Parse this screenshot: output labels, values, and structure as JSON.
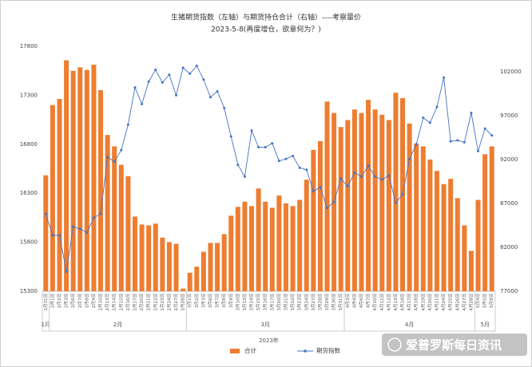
{
  "chart_data": {
    "type": "bar_line",
    "title": "生猪期货指数（左轴）与期货持仓合计（右轴）----考察量价",
    "subtitle": "2023-5-8(再度增仓，欲意何为？)",
    "x_label": "2023年",
    "watermark": "爱普罗斯每日资讯",
    "categories": [
      "1月31日",
      "2月1日",
      "2月2日",
      "2月3日",
      "2月6日",
      "2月7日",
      "2月8日",
      "2月9日",
      "2月10日",
      "2月13日",
      "2月14日",
      "2月15日",
      "2月16日",
      "2月17日",
      "2月20日",
      "2月21日",
      "2月22日",
      "2月23日",
      "2月24日",
      "2月27日",
      "2月28日",
      "3月1日",
      "3月2日",
      "3月3日",
      "3月6日",
      "3月7日",
      "3月8日",
      "3月9日",
      "3月10日",
      "3月13日",
      "3月14日",
      "3月15日",
      "3月16日",
      "3月17日",
      "3月20日",
      "3月21日",
      "3月22日",
      "3月23日",
      "3月24日",
      "3月27日",
      "3月28日",
      "3月29日",
      "3月30日",
      "3月31日",
      "4月3日",
      "4月4日",
      "4月6日",
      "4月7日",
      "4月10日",
      "4月11日",
      "4月12日",
      "4月13日",
      "4月14日",
      "4月17日",
      "4月18日",
      "4月19日",
      "4月20日",
      "4月21日",
      "4月24日",
      "4月25日",
      "4月26日",
      "4月27日",
      "4月28日",
      "5月4日",
      "5月5日",
      "5月8日"
    ],
    "month_groups": [
      {
        "label": "1月",
        "count": 1
      },
      {
        "label": "2月",
        "count": 20
      },
      {
        "label": "3月",
        "count": 23
      },
      {
        "label": "4月",
        "count": 19
      },
      {
        "label": "5月",
        "count": 3
      }
    ],
    "series": [
      {
        "name": "合计",
        "type": "bar",
        "axis": "y2",
        "color": "#ed7d31",
        "values": [
          90200,
          98200,
          98900,
          103300,
          102100,
          102500,
          102200,
          102800,
          99900,
          94800,
          93500,
          91400,
          90100,
          85500,
          84600,
          84500,
          84700,
          83100,
          82600,
          82400,
          77300,
          79100,
          79800,
          81500,
          82500,
          82500,
          83500,
          85600,
          86600,
          87200,
          86700,
          88700,
          87200,
          86500,
          87900,
          87000,
          86700,
          87400,
          89700,
          93100,
          94100,
          98600,
          97300,
          95700,
          96500,
          97700,
          97300,
          98800,
          97700,
          97100,
          96500,
          99600,
          99000,
          96100,
          93800,
          93500,
          92000,
          90700,
          89200,
          89800,
          87600,
          84500,
          81600,
          87400,
          92600,
          93500
        ]
      },
      {
        "name": "期货指数",
        "type": "line",
        "axis": "y",
        "color": "#4472c4",
        "values": [
          16090,
          15870,
          15870,
          15500,
          15960,
          15935,
          15900,
          16050,
          16090,
          16670,
          16620,
          16740,
          17000,
          17380,
          17210,
          17440,
          17560,
          17430,
          17510,
          17300,
          17580,
          17520,
          17600,
          17460,
          17280,
          17340,
          17170,
          16880,
          16590,
          16470,
          16940,
          16770,
          16770,
          16810,
          16630,
          16650,
          16680,
          16560,
          16540,
          16320,
          16360,
          16150,
          16210,
          16450,
          16370,
          16510,
          16470,
          16580,
          16470,
          16440,
          16480,
          16200,
          16290,
          16650,
          16800,
          17070,
          17020,
          17180,
          17480,
          16830,
          16840,
          16820,
          17120,
          16730,
          16960,
          16890
        ]
      }
    ],
    "ylim": [
      15300,
      17800
    ],
    "yticks": [
      15300,
      15800,
      16300,
      16800,
      17300,
      17800
    ],
    "y2lim": [
      77000,
      104900
    ],
    "y2ticks": [
      77000,
      82000,
      87000,
      92000,
      97000,
      102000
    ],
    "legend": "bottom"
  }
}
